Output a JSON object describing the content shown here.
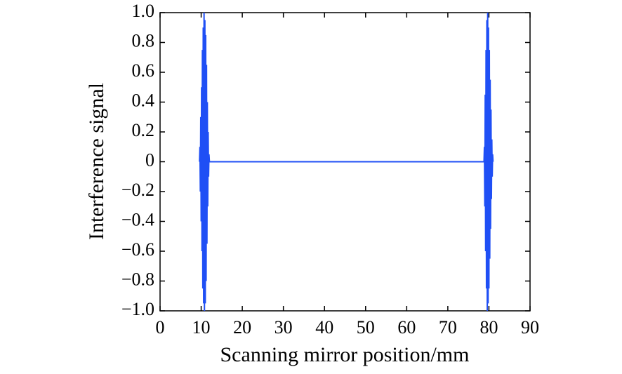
{
  "chart_data": {
    "type": "line",
    "xlabel": "Scanning mirror position/mm",
    "ylabel": "Interference signal",
    "xlim": [
      0,
      90
    ],
    "xticks": [
      0,
      10,
      20,
      30,
      40,
      50,
      60,
      70,
      80,
      90
    ],
    "ylim": [
      -1,
      1
    ],
    "yticks": [
      {
        "value": -1,
        "label": "−1.0"
      },
      {
        "value": -0.8,
        "label": "−0.8"
      },
      {
        "value": -0.6,
        "label": "−0.6"
      },
      {
        "value": -0.4,
        "label": "−0.4"
      },
      {
        "value": -0.2,
        "label": "−0.2"
      },
      0,
      {
        "value": 0.2,
        "label": "0.2"
      },
      {
        "value": 0.4,
        "label": "0.4"
      },
      {
        "value": 0.6,
        "label": "0.6"
      },
      {
        "value": 0.8,
        "label": "0.8"
      },
      {
        "value": 1,
        "label": "1.0"
      }
    ],
    "x": [
      9.6,
      9.7,
      9.8,
      9.9,
      10.0,
      10.1,
      10.2,
      10.3,
      10.4,
      10.5,
      10.6,
      10.7,
      10.8,
      10.9,
      11.0,
      11.1,
      11.2,
      11.3,
      11.4,
      11.5,
      11.6,
      11.7,
      11.8,
      11.9,
      12.0,
      78.8,
      78.9,
      79.0,
      79.1,
      79.2,
      79.3,
      79.4,
      79.5,
      79.6,
      79.7,
      79.8,
      79.9,
      80.0,
      80.1,
      80.2,
      80.3,
      80.4,
      80.5,
      80.6,
      80.7,
      80.8,
      80.9,
      81.0
    ],
    "series": [
      {
        "color": "#1f4ff5",
        "values": [
          0,
          0.1,
          -0.2,
          0.3,
          -0.4,
          0.5,
          -0.6,
          0.75,
          -0.85,
          0.9,
          -0.95,
          1.0,
          -1.0,
          0.95,
          -0.95,
          0.85,
          -0.8,
          0.65,
          -0.55,
          0.4,
          -0.3,
          0.2,
          -0.1,
          0.05,
          0,
          0,
          0.1,
          -0.3,
          0.45,
          -0.6,
          0.75,
          -0.85,
          0.95,
          -1.0,
          1.0,
          -0.95,
          0.9,
          -0.85,
          0.75,
          -0.65,
          0.55,
          -0.45,
          0.35,
          -0.25,
          0.15,
          -0.1,
          0.05,
          0
        ]
      }
    ]
  }
}
